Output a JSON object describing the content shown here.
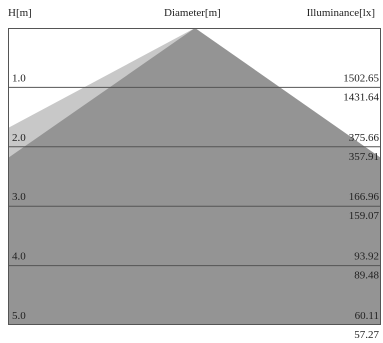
{
  "header": {
    "height_label": "H[m]",
    "diameter_label": "Diameter[m]",
    "illuminance_label": "Illuminance[lx]"
  },
  "chart_data": {
    "type": "area",
    "x_label": "Diameter[m]",
    "y_label": "H[m]",
    "value_label": "Illuminance[lx]",
    "h_range": [
      0,
      5
    ],
    "rows": [
      {
        "h": "1.0",
        "illuminance_a": "1502.65",
        "illuminance_b": "1431.64"
      },
      {
        "h": "2.0",
        "illuminance_a": "375.66",
        "illuminance_b": "357.91"
      },
      {
        "h": "3.0",
        "illuminance_a": "166.96",
        "illuminance_b": "159.07"
      },
      {
        "h": "4.0",
        "illuminance_a": "93.92",
        "illuminance_b": "89.48"
      },
      {
        "h": "5.0",
        "illuminance_a": "60.11",
        "illuminance_b": "57.27"
      }
    ],
    "colors": {
      "outer_cone": "#c8c8c8",
      "inner_cone": "#949494",
      "grid": "#555555",
      "frame": "#555555"
    }
  }
}
